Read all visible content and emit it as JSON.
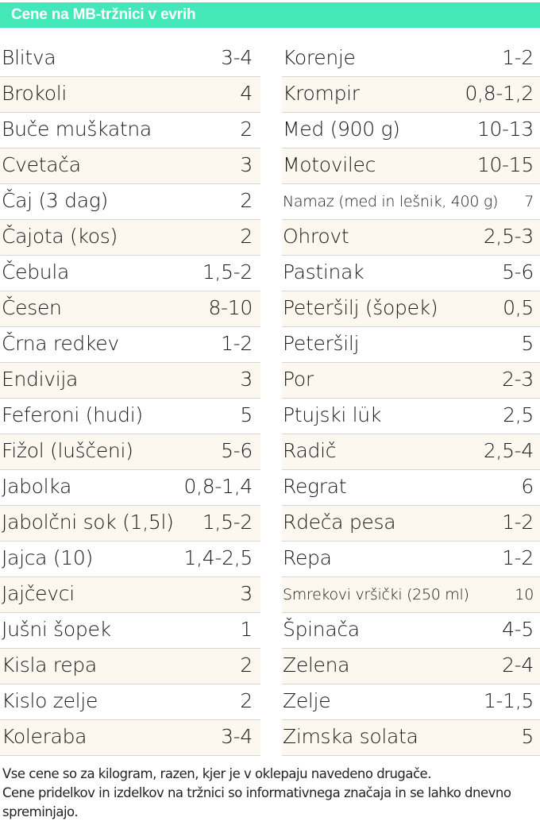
{
  "header": {
    "title": "Cene na MB-tržnici v evrih",
    "accent_color": "#44e8b8"
  },
  "left_column": [
    {
      "name": "Blitva",
      "price": "3-4"
    },
    {
      "name": "Brokoli",
      "price": "4"
    },
    {
      "name": "Buče muškatna",
      "price": "2"
    },
    {
      "name": "Cvetača",
      "price": "3"
    },
    {
      "name": "Čaj (3 dag)",
      "price": "2"
    },
    {
      "name": "Čajota (kos)",
      "price": "2"
    },
    {
      "name": "Čebula",
      "price": "1,5-2"
    },
    {
      "name": "Česen",
      "price": "8-10"
    },
    {
      "name": "Črna redkev",
      "price": "1-2"
    },
    {
      "name": "Endivija",
      "price": "3"
    },
    {
      "name": "Feferoni (hudi)",
      "price": "5"
    },
    {
      "name": "Fižol (luščeni)",
      "price": "5-6"
    },
    {
      "name": "Jabolka",
      "price": "0,8-1,4"
    },
    {
      "name": "Jabolčni sok (1,5l)",
      "price": "1,5-2"
    },
    {
      "name": "Jajca (10)",
      "price": "1,4-2,5"
    },
    {
      "name": "Jajčevci",
      "price": "3"
    },
    {
      "name": "Jušni šopek",
      "price": "1"
    },
    {
      "name": "Kisla repa",
      "price": "2"
    },
    {
      "name": "Kislo zelje",
      "price": "2"
    },
    {
      "name": "Koleraba",
      "price": "3-4"
    }
  ],
  "right_column": [
    {
      "name": "Korenje",
      "price": "1-2"
    },
    {
      "name": "Krompir",
      "price": "0,8-1,2"
    },
    {
      "name": "Med (900 g)",
      "price": "10-13"
    },
    {
      "name": "Motovilec",
      "price": "10-15"
    },
    {
      "name": "Namaz (med in lešnik, 400 g)",
      "price": "7"
    },
    {
      "name": "Ohrovt",
      "price": "2,5-3"
    },
    {
      "name": "Pastinak",
      "price": "5-6"
    },
    {
      "name": "Peteršilj (šopek)",
      "price": "0,5"
    },
    {
      "name": "Peteršilj",
      "price": "5"
    },
    {
      "name": "Por",
      "price": "2-3"
    },
    {
      "name": "Ptujski lük",
      "price": "2,5"
    },
    {
      "name": "Radič",
      "price": "2,5-4"
    },
    {
      "name": "Regrat",
      "price": "6"
    },
    {
      "name": "Rdeča pesa",
      "price": "1-2"
    },
    {
      "name": "Repa",
      "price": "1-2"
    },
    {
      "name": "Smrekovi vršički (250 ml)",
      "price": "10"
    },
    {
      "name": "Špinača",
      "price": "4-5"
    },
    {
      "name": "Zelena",
      "price": "2-4"
    },
    {
      "name": "Zelje",
      "price": "1-1,5"
    },
    {
      "name": "Zimska solata",
      "price": "5"
    }
  ],
  "footer": {
    "line1": "Vse cene so za kilogram, razen, kjer je v oklepaju navedeno drugače.",
    "line2": "Cene pridelkov in izdelkov na tržnici so informativnega značaja in se lahko dnevno spreminjajo."
  }
}
